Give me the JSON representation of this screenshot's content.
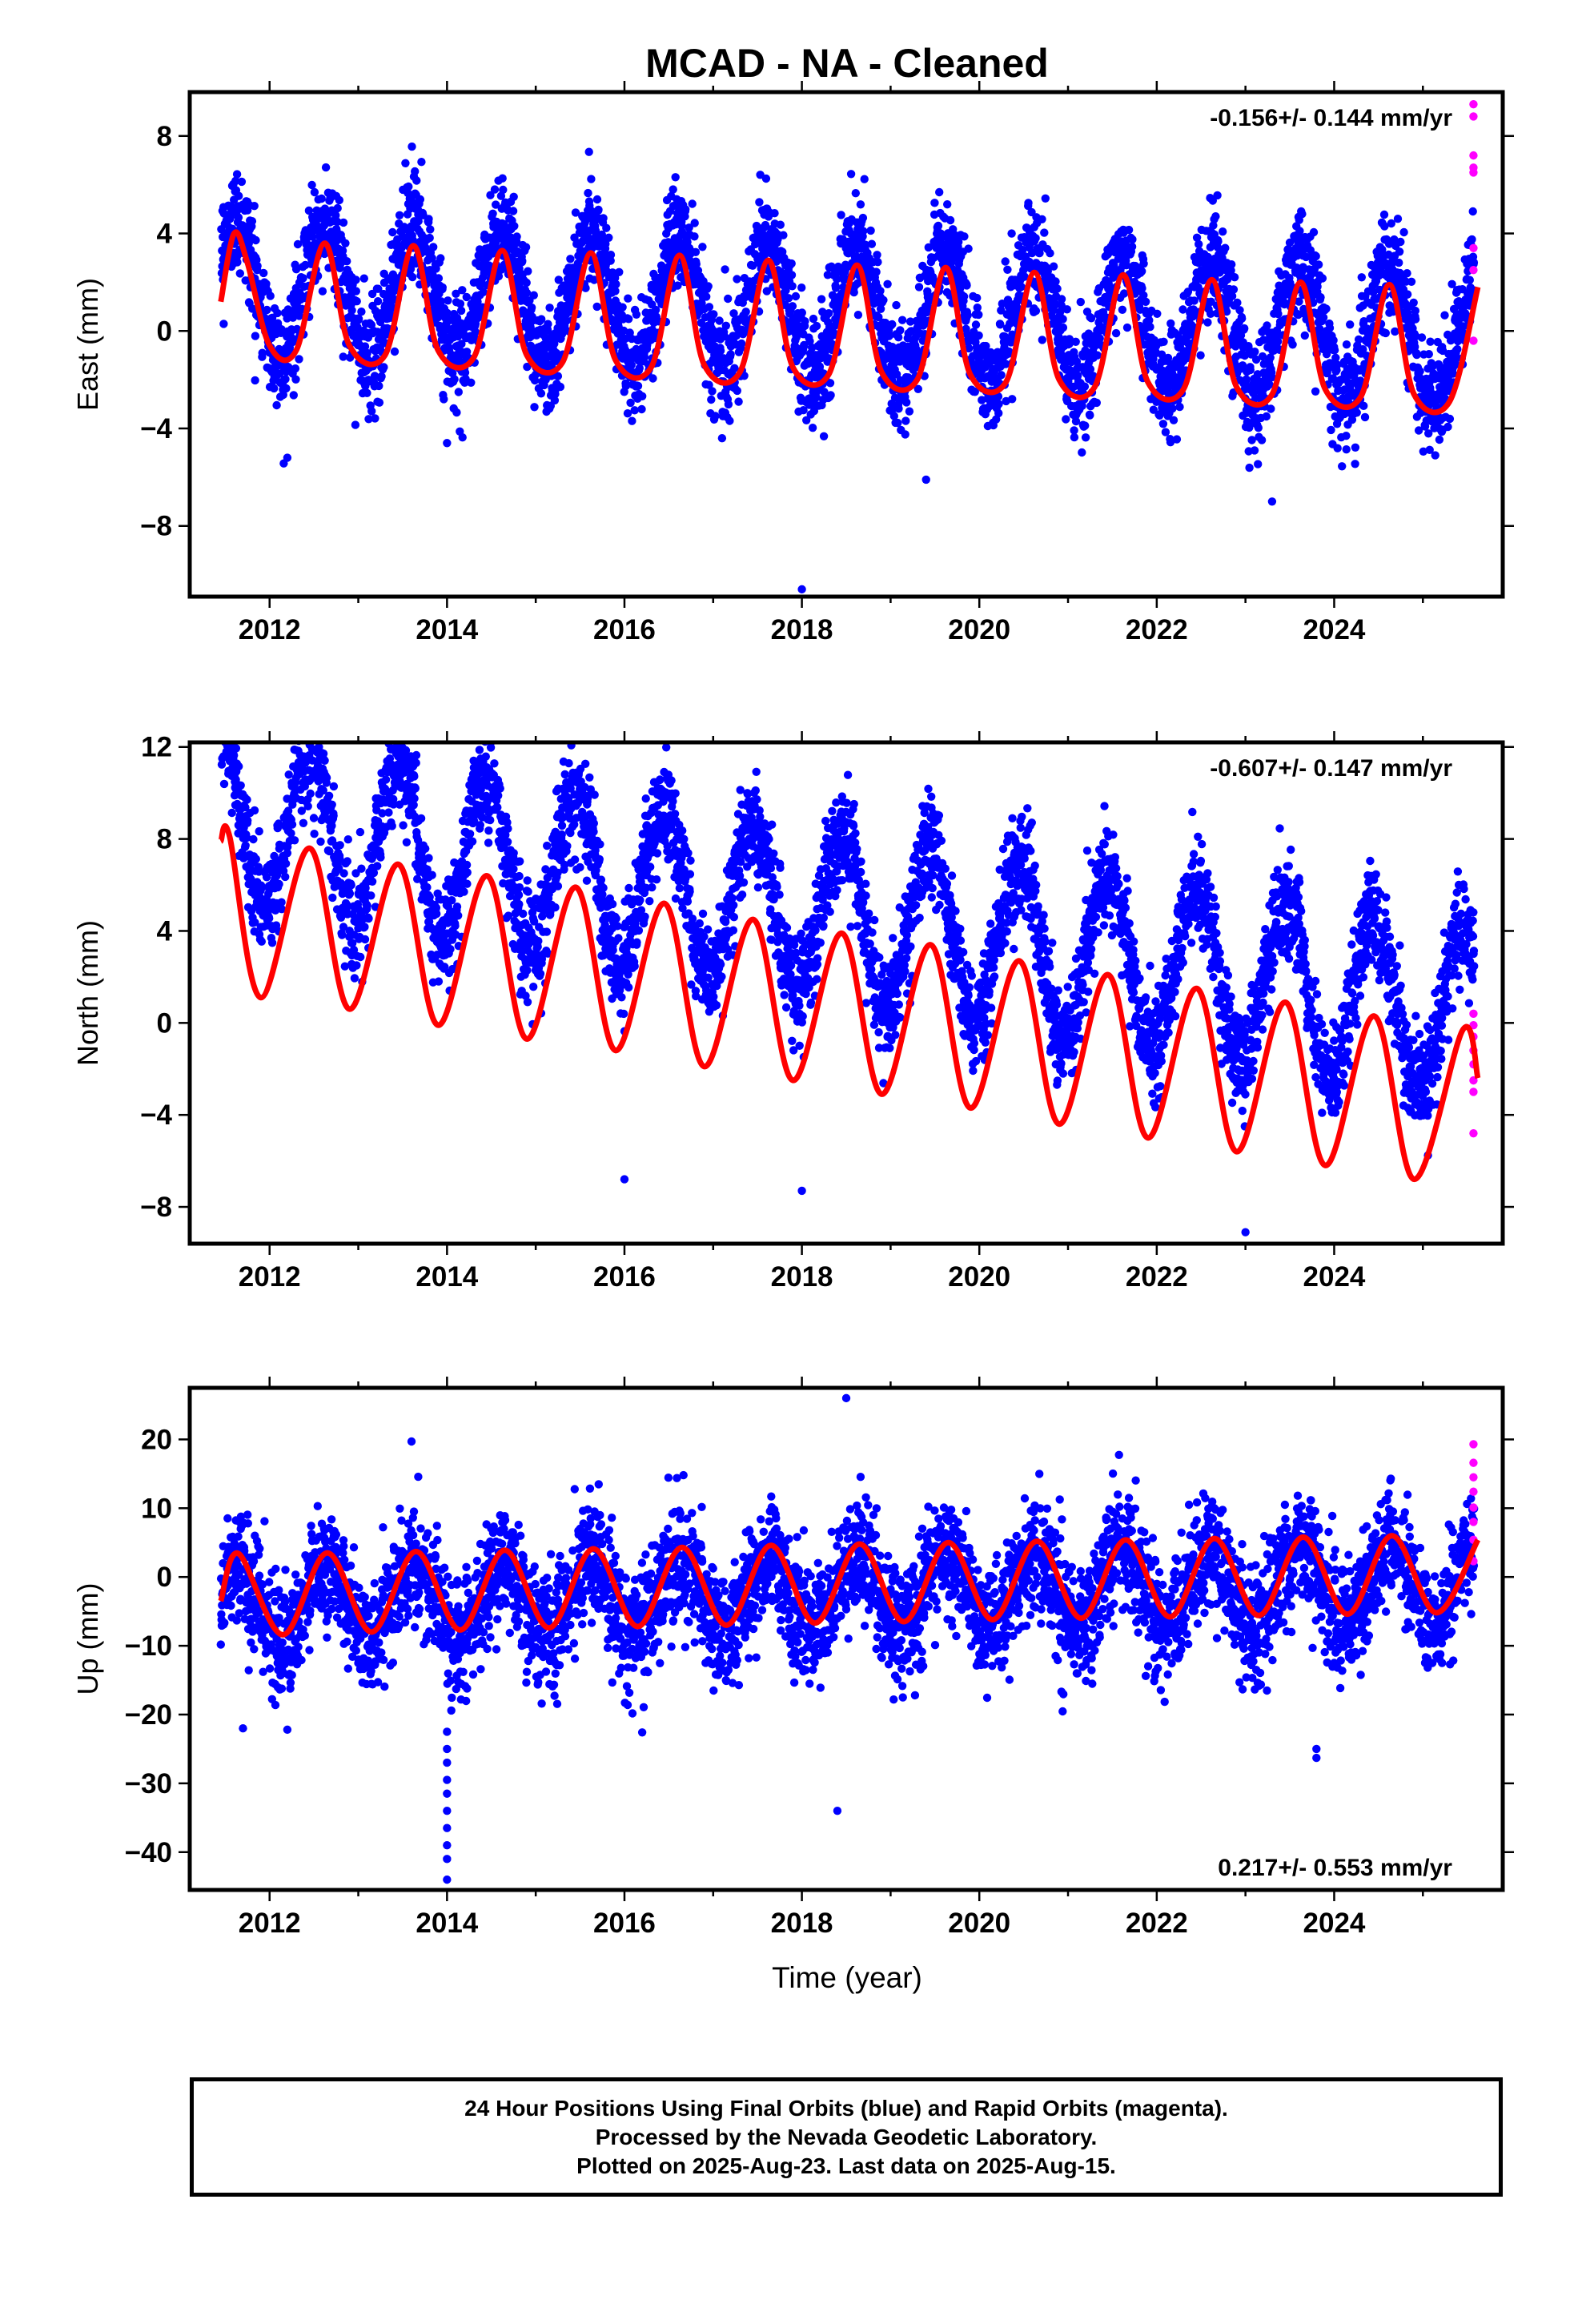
{
  "title": "MCAD  - NA - Cleaned",
  "xlabel": "Time (year)",
  "colors": {
    "final": "#0000ff",
    "rapid": "#ff00ff",
    "model": "#ff0000",
    "frame": "#000000"
  },
  "footer": {
    "line1": "24 Hour Positions Using Final Orbits (blue) and Rapid Orbits (magenta).",
    "line2": "Processed by the Nevada Geodetic Laboratory.",
    "line3": "Plotted on 2025-Aug-23. Last data on 2025-Aug-15."
  },
  "chart_data": [
    {
      "type": "scatter",
      "component": "East",
      "ylabel": "East (mm)",
      "rate": "-0.156+/- 0.144 mm/yr",
      "xlim": [
        2011.1,
        2025.9
      ],
      "ylim": [
        -10.9,
        9.8
      ],
      "xticks": [
        2012,
        2014,
        2016,
        2018,
        2020,
        2022,
        2024
      ],
      "yticks": [
        -8,
        -4,
        0,
        4,
        8
      ],
      "start": 2011.45,
      "end": 2025.62,
      "seasonal": {
        "amplitude": 2.7,
        "peak_phase": 0.62,
        "trend": -0.156,
        "offset": 0.8,
        "noise": 1.1
      },
      "model": [
        [
          2011.45,
          1.2
        ],
        [
          2011.6,
          4.0
        ],
        [
          2011.75,
          2.8
        ],
        [
          2012.0,
          -0.6
        ],
        [
          2012.3,
          -0.8
        ],
        [
          2012.62,
          3.6
        ],
        [
          2012.9,
          -0.6
        ],
        [
          2013.3,
          -1.0
        ],
        [
          2013.62,
          3.5
        ],
        [
          2013.9,
          -0.8
        ],
        [
          2014.3,
          -1.1
        ],
        [
          2014.62,
          3.3
        ],
        [
          2014.9,
          -1.0
        ],
        [
          2015.3,
          -1.3
        ],
        [
          2015.62,
          3.2
        ],
        [
          2015.9,
          -1.2
        ],
        [
          2016.3,
          -1.5
        ],
        [
          2016.62,
          3.1
        ],
        [
          2016.9,
          -1.4
        ],
        [
          2017.3,
          -1.7
        ],
        [
          2017.62,
          2.9
        ],
        [
          2017.9,
          -1.5
        ],
        [
          2018.3,
          -1.8
        ],
        [
          2018.62,
          2.7
        ],
        [
          2018.9,
          -1.7
        ],
        [
          2019.3,
          -2.0
        ],
        [
          2019.62,
          2.6
        ],
        [
          2019.9,
          -1.8
        ],
        [
          2020.3,
          -2.1
        ],
        [
          2020.62,
          2.4
        ],
        [
          2020.9,
          -2.0
        ],
        [
          2021.3,
          -2.3
        ],
        [
          2021.62,
          2.3
        ],
        [
          2021.9,
          -2.1
        ],
        [
          2022.3,
          -2.4
        ],
        [
          2022.62,
          2.1
        ],
        [
          2022.9,
          -2.3
        ],
        [
          2023.3,
          -2.6
        ],
        [
          2023.62,
          2.0
        ],
        [
          2023.9,
          -2.4
        ],
        [
          2024.3,
          -2.7
        ],
        [
          2024.62,
          1.9
        ],
        [
          2024.9,
          -2.6
        ],
        [
          2025.3,
          -2.9
        ],
        [
          2025.62,
          1.8
        ]
      ],
      "outliers": [
        [
          2012.2,
          -5.2
        ],
        [
          2014.0,
          -4.6
        ],
        [
          2017.1,
          -4.4
        ],
        [
          2018.0,
          -10.6
        ],
        [
          2019.4,
          -6.1
        ],
        [
          2023.3,
          -7.0
        ]
      ],
      "rapid": [
        [
          2025.57,
          9.3
        ],
        [
          2025.57,
          8.8
        ],
        [
          2025.57,
          7.2
        ],
        [
          2025.57,
          6.7
        ],
        [
          2025.57,
          6.5
        ],
        [
          2025.57,
          3.4
        ],
        [
          2025.57,
          2.5
        ],
        [
          2025.57,
          -0.4
        ]
      ]
    },
    {
      "type": "scatter",
      "component": "North",
      "ylabel": "North (mm)",
      "rate": "-0.607+/- 0.147 mm/yr",
      "xlim": [
        2011.1,
        2025.9
      ],
      "ylim": [
        -9.6,
        12.2
      ],
      "xticks": [
        2012,
        2014,
        2016,
        2018,
        2020,
        2022,
        2024
      ],
      "yticks": [
        -8,
        -4,
        0,
        4,
        8,
        12
      ],
      "start": 2011.45,
      "end": 2025.62,
      "seasonal": {
        "amplitude": 3.6,
        "peak_phase": 0.45,
        "trend": -0.607,
        "offset": 4.6,
        "noise": 1.1
      },
      "model": [
        [
          2011.45,
          7.9
        ],
        [
          2011.55,
          8.1
        ],
        [
          2011.9,
          1.1
        ],
        [
          2012.45,
          7.6
        ],
        [
          2012.9,
          0.6
        ],
        [
          2013.45,
          6.9
        ],
        [
          2013.9,
          -0.1
        ],
        [
          2014.45,
          6.4
        ],
        [
          2014.9,
          -0.7
        ],
        [
          2015.45,
          5.9
        ],
        [
          2015.9,
          -1.2
        ],
        [
          2016.45,
          5.2
        ],
        [
          2016.9,
          -1.9
        ],
        [
          2017.45,
          4.5
        ],
        [
          2017.9,
          -2.5
        ],
        [
          2018.45,
          3.9
        ],
        [
          2018.9,
          -3.1
        ],
        [
          2019.45,
          3.4
        ],
        [
          2019.9,
          -3.7
        ],
        [
          2020.45,
          2.7
        ],
        [
          2020.9,
          -4.4
        ],
        [
          2021.45,
          2.1
        ],
        [
          2021.9,
          -5.0
        ],
        [
          2022.45,
          1.5
        ],
        [
          2022.9,
          -5.6
        ],
        [
          2023.45,
          0.9
        ],
        [
          2023.9,
          -6.2
        ],
        [
          2024.45,
          0.3
        ],
        [
          2024.9,
          -6.8
        ],
        [
          2025.45,
          -0.3
        ],
        [
          2025.62,
          -2.4
        ]
      ],
      "outliers": [
        [
          2011.5,
          11.6
        ],
        [
          2013.6,
          10.7
        ],
        [
          2016.0,
          -6.8
        ],
        [
          2018.0,
          -7.3
        ],
        [
          2023.0,
          -9.1
        ]
      ],
      "rapid": [
        [
          2025.57,
          0.4
        ],
        [
          2025.57,
          -0.1
        ],
        [
          2025.57,
          -0.6
        ],
        [
          2025.57,
          -1.2
        ],
        [
          2025.57,
          -1.8
        ],
        [
          2025.57,
          -2.5
        ],
        [
          2025.57,
          -3.0
        ],
        [
          2025.57,
          -4.8
        ]
      ]
    },
    {
      "type": "scatter",
      "component": "Up",
      "ylabel": "Up (mm)",
      "rate": "0.217+/- 0.553 mm/yr",
      "xlim": [
        2011.1,
        2025.9
      ],
      "ylim": [
        -45.5,
        27.5
      ],
      "xticks": [
        2012,
        2014,
        2016,
        2018,
        2020,
        2022,
        2024
      ],
      "yticks": [
        -40,
        -30,
        -20,
        -10,
        0,
        10,
        20
      ],
      "start": 2011.45,
      "end": 2025.62,
      "seasonal": {
        "amplitude": 5.5,
        "peak_phase": 0.62,
        "trend": 0.217,
        "offset": -2.4,
        "noise": 4.2
      },
      "model": [
        [
          2011.45,
          -3.5
        ],
        [
          2011.65,
          3.4
        ],
        [
          2012.15,
          -8.4
        ],
        [
          2012.65,
          3.5
        ],
        [
          2013.15,
          -8.0
        ],
        [
          2013.65,
          3.7
        ],
        [
          2014.15,
          -7.7
        ],
        [
          2014.65,
          3.9
        ],
        [
          2015.15,
          -7.4
        ],
        [
          2015.65,
          4.1
        ],
        [
          2016.15,
          -7.2
        ],
        [
          2016.65,
          4.3
        ],
        [
          2017.15,
          -7.0
        ],
        [
          2017.65,
          4.6
        ],
        [
          2018.15,
          -6.7
        ],
        [
          2018.65,
          4.8
        ],
        [
          2019.15,
          -6.5
        ],
        [
          2019.65,
          5.0
        ],
        [
          2020.15,
          -6.2
        ],
        [
          2020.65,
          5.2
        ],
        [
          2021.15,
          -6.0
        ],
        [
          2021.65,
          5.4
        ],
        [
          2022.15,
          -5.8
        ],
        [
          2022.65,
          5.6
        ],
        [
          2023.15,
          -5.6
        ],
        [
          2023.65,
          5.8
        ],
        [
          2024.15,
          -5.4
        ],
        [
          2024.65,
          6.0
        ],
        [
          2025.15,
          -5.2
        ],
        [
          2025.62,
          5.4
        ]
      ],
      "outliers": [
        [
          2011.7,
          -22.0
        ],
        [
          2012.2,
          -22.2
        ],
        [
          2013.6,
          19.7
        ],
        [
          2014.0,
          -22.5
        ],
        [
          2014.0,
          -25.0
        ],
        [
          2014.0,
          -27.0
        ],
        [
          2014.0,
          -29.5
        ],
        [
          2014.0,
          -31.5
        ],
        [
          2014.0,
          -34.0
        ],
        [
          2014.0,
          -36.5
        ],
        [
          2014.0,
          -39.0
        ],
        [
          2014.0,
          -41.0
        ],
        [
          2014.0,
          -44.0
        ],
        [
          2016.2,
          -22.6
        ],
        [
          2018.4,
          -34.0
        ],
        [
          2018.5,
          26.0
        ],
        [
          2023.8,
          -25.0
        ],
        [
          2023.8,
          -26.3
        ]
      ],
      "rapid": [
        [
          2025.57,
          19.3
        ],
        [
          2025.57,
          16.6
        ],
        [
          2025.57,
          14.5
        ],
        [
          2025.57,
          12.4
        ],
        [
          2025.57,
          10.1
        ],
        [
          2025.57,
          8.0
        ],
        [
          2025.57,
          5.4
        ],
        [
          2025.57,
          2.3
        ]
      ]
    }
  ]
}
